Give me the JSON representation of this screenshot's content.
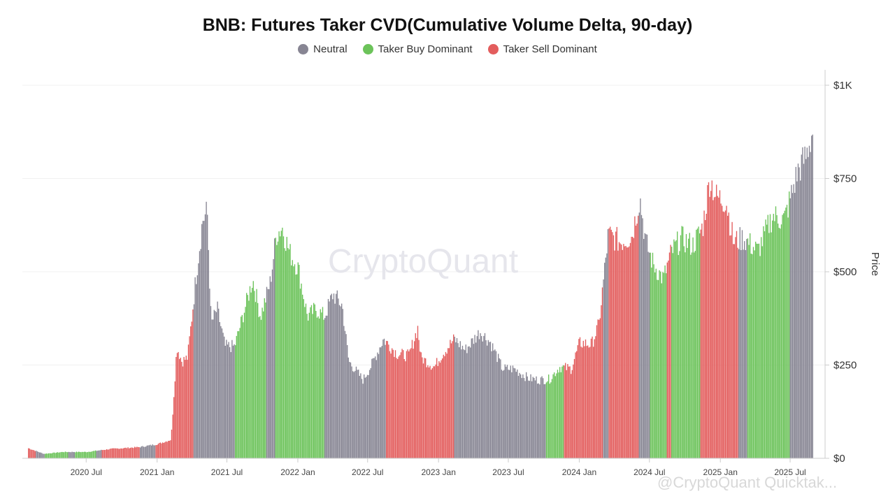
{
  "title": "BNB: Futures Taker CVD(Cumulative Volume Delta, 90-day)",
  "legend": [
    {
      "label": "Neutral",
      "color": "#878593"
    },
    {
      "label": "Taker Buy Dominant",
      "color": "#6cc35a"
    },
    {
      "label": "Taker Sell Dominant",
      "color": "#e35d5d"
    }
  ],
  "watermark": "CryptoQuant",
  "footer_watermark": "@CryptoQuant Quicktak...",
  "chart_data": {
    "type": "bar",
    "title": "BNB: Futures Taker CVD(Cumulative Volume Delta, 90-day)",
    "ylabel": "Price",
    "ylim": [
      0,
      1000
    ],
    "y_ticks": [
      "$0",
      "$250",
      "$500",
      "$750",
      "$1K"
    ],
    "y_tick_values": [
      0,
      250,
      500,
      750,
      1000
    ],
    "x_ticks": [
      "2020 Jul",
      "2021 Jan",
      "2021 Jul",
      "2022 Jan",
      "2022 Jul",
      "2023 Jan",
      "2023 Jul",
      "2024 Jan",
      "2024 Jul",
      "2025 Jan",
      "2025 Jul"
    ],
    "x_tick_dates": [
      "2020-07-01",
      "2021-01-01",
      "2021-07-01",
      "2022-01-01",
      "2022-07-01",
      "2023-01-01",
      "2023-07-01",
      "2024-01-01",
      "2024-07-01",
      "2025-01-01",
      "2025-07-01"
    ],
    "x_range": [
      "2020-02-01",
      "2025-08-28"
    ],
    "grid": true,
    "legend_position": "top-center",
    "price_points": [
      [
        "2020-02-01",
        27
      ],
      [
        "2020-03-12",
        12
      ],
      [
        "2020-05-01",
        17
      ],
      [
        "2020-07-01",
        17
      ],
      [
        "2020-09-01",
        25
      ],
      [
        "2020-11-15",
        30
      ],
      [
        "2021-01-01",
        38
      ],
      [
        "2021-02-05",
        50
      ],
      [
        "2021-02-20",
        300
      ],
      [
        "2021-03-05",
        260
      ],
      [
        "2021-03-20",
        270
      ],
      [
        "2021-04-10",
        480
      ],
      [
        "2021-04-28",
        640
      ],
      [
        "2021-05-10",
        660
      ],
      [
        "2021-05-20",
        360
      ],
      [
        "2021-06-05",
        400
      ],
      [
        "2021-06-25",
        300
      ],
      [
        "2021-07-20",
        300
      ],
      [
        "2021-08-15",
        400
      ],
      [
        "2021-09-05",
        480
      ],
      [
        "2021-09-25",
        380
      ],
      [
        "2021-10-20",
        470
      ],
      [
        "2021-11-05",
        600
      ],
      [
        "2021-11-20",
        620
      ],
      [
        "2021-12-10",
        550
      ],
      [
        "2022-01-01",
        510
      ],
      [
        "2022-01-25",
        380
      ],
      [
        "2022-02-15",
        400
      ],
      [
        "2022-03-10",
        380
      ],
      [
        "2022-04-01",
        440
      ],
      [
        "2022-04-25",
        410
      ],
      [
        "2022-05-12",
        260
      ],
      [
        "2022-06-18",
        210
      ],
      [
        "2022-07-10",
        250
      ],
      [
        "2022-08-10",
        320
      ],
      [
        "2022-09-15",
        280
      ],
      [
        "2022-10-15",
        275
      ],
      [
        "2022-11-07",
        350
      ],
      [
        "2022-11-15",
        270
      ],
      [
        "2022-12-20",
        245
      ],
      [
        "2023-01-10",
        280
      ],
      [
        "2023-02-10",
        320
      ],
      [
        "2023-03-10",
        290
      ],
      [
        "2023-04-18",
        340
      ],
      [
        "2023-05-15",
        310
      ],
      [
        "2023-06-15",
        240
      ],
      [
        "2023-07-15",
        240
      ],
      [
        "2023-08-20",
        215
      ],
      [
        "2023-09-15",
        210
      ],
      [
        "2023-10-15",
        212
      ],
      [
        "2023-11-10",
        245
      ],
      [
        "2023-12-10",
        240
      ],
      [
        "2024-01-01",
        310
      ],
      [
        "2024-02-01",
        305
      ],
      [
        "2024-02-20",
        360
      ],
      [
        "2024-03-15",
        600
      ],
      [
        "2024-04-15",
        580
      ],
      [
        "2024-05-15",
        595
      ],
      [
        "2024-06-05",
        700
      ],
      [
        "2024-06-20",
        580
      ],
      [
        "2024-07-10",
        520
      ],
      [
        "2024-08-05",
        480
      ],
      [
        "2024-08-25",
        550
      ],
      [
        "2024-09-20",
        590
      ],
      [
        "2024-10-20",
        570
      ],
      [
        "2024-11-15",
        620
      ],
      [
        "2024-12-04",
        750
      ],
      [
        "2024-12-20",
        700
      ],
      [
        "2025-01-15",
        690
      ],
      [
        "2025-02-03",
        580
      ],
      [
        "2025-03-01",
        590
      ],
      [
        "2025-04-07",
        555
      ],
      [
        "2025-05-15",
        650
      ],
      [
        "2025-06-15",
        640
      ],
      [
        "2025-07-20",
        770
      ],
      [
        "2025-08-10",
        810
      ],
      [
        "2025-08-28",
        880
      ]
    ],
    "segments": [
      {
        "start": "2020-02-01",
        "end": "2020-02-20",
        "class": "Taker Sell Dominant"
      },
      {
        "start": "2020-02-20",
        "end": "2020-03-15",
        "class": "Neutral"
      },
      {
        "start": "2020-03-15",
        "end": "2020-05-15",
        "class": "Taker Buy Dominant"
      },
      {
        "start": "2020-05-15",
        "end": "2020-06-01",
        "class": "Neutral"
      },
      {
        "start": "2020-06-01",
        "end": "2020-07-25",
        "class": "Taker Buy Dominant"
      },
      {
        "start": "2020-07-25",
        "end": "2020-08-10",
        "class": "Neutral"
      },
      {
        "start": "2020-08-10",
        "end": "2020-11-15",
        "class": "Taker Sell Dominant"
      },
      {
        "start": "2020-11-15",
        "end": "2020-12-25",
        "class": "Neutral"
      },
      {
        "start": "2020-12-25",
        "end": "2021-04-05",
        "class": "Taker Sell Dominant"
      },
      {
        "start": "2021-04-05",
        "end": "2021-07-20",
        "class": "Neutral"
      },
      {
        "start": "2021-07-20",
        "end": "2021-10-10",
        "class": "Taker Buy Dominant"
      },
      {
        "start": "2021-10-10",
        "end": "2021-11-01",
        "class": "Neutral"
      },
      {
        "start": "2021-11-01",
        "end": "2022-03-10",
        "class": "Taker Buy Dominant"
      },
      {
        "start": "2022-03-10",
        "end": "2022-08-15",
        "class": "Neutral"
      },
      {
        "start": "2022-08-15",
        "end": "2023-02-10",
        "class": "Taker Sell Dominant"
      },
      {
        "start": "2023-02-10",
        "end": "2023-10-05",
        "class": "Neutral"
      },
      {
        "start": "2023-10-05",
        "end": "2023-11-20",
        "class": "Taker Buy Dominant"
      },
      {
        "start": "2023-11-20",
        "end": "2024-03-01",
        "class": "Taker Sell Dominant"
      },
      {
        "start": "2024-03-01",
        "end": "2024-03-15",
        "class": "Neutral"
      },
      {
        "start": "2024-03-15",
        "end": "2024-06-01",
        "class": "Taker Sell Dominant"
      },
      {
        "start": "2024-06-01",
        "end": "2024-07-01",
        "class": "Neutral"
      },
      {
        "start": "2024-07-01",
        "end": "2024-08-15",
        "class": "Taker Buy Dominant"
      },
      {
        "start": "2024-08-15",
        "end": "2024-08-25",
        "class": "Taker Sell Dominant"
      },
      {
        "start": "2024-08-25",
        "end": "2024-11-10",
        "class": "Taker Buy Dominant"
      },
      {
        "start": "2024-11-10",
        "end": "2025-02-15",
        "class": "Taker Sell Dominant"
      },
      {
        "start": "2025-02-15",
        "end": "2025-03-10",
        "class": "Neutral"
      },
      {
        "start": "2025-03-10",
        "end": "2025-06-30",
        "class": "Taker Buy Dominant"
      },
      {
        "start": "2025-06-30",
        "end": "2025-08-28",
        "class": "Neutral"
      }
    ]
  }
}
